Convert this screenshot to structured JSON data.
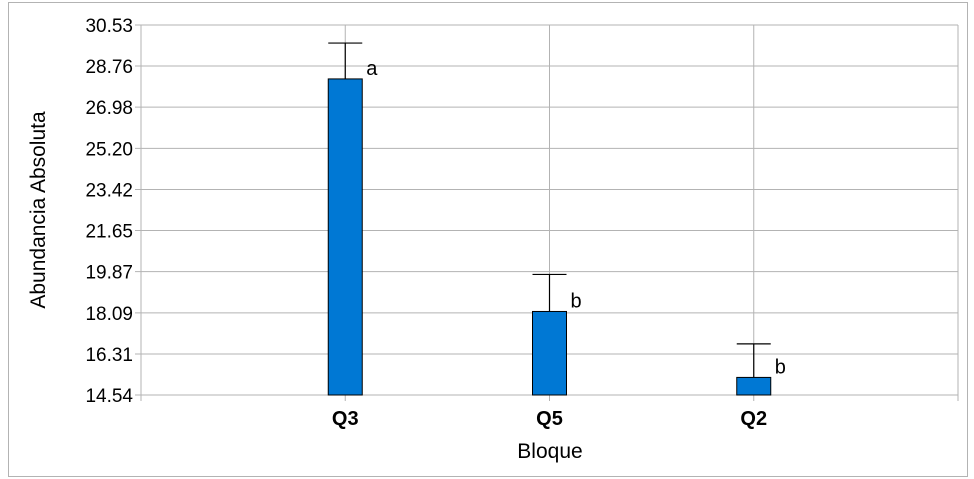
{
  "chart_data": {
    "type": "bar",
    "title": "",
    "xlabel": "Bloque",
    "ylabel": "Abundancia Absoluta",
    "categories": [
      "Q3",
      "Q5",
      "Q2"
    ],
    "values": [
      28.2,
      18.15,
      15.3
    ],
    "error_upper": [
      29.75,
      19.75,
      16.75
    ],
    "annotations": [
      "a",
      "b",
      "b"
    ],
    "ylim": [
      14.54,
      30.53
    ],
    "yticks": [
      "30.53",
      "28.76",
      "26.98",
      "25.20",
      "23.42",
      "21.65",
      "19.87",
      "18.09",
      "16.31",
      "14.54"
    ],
    "grid": true,
    "bar_color": "#0078d4"
  }
}
